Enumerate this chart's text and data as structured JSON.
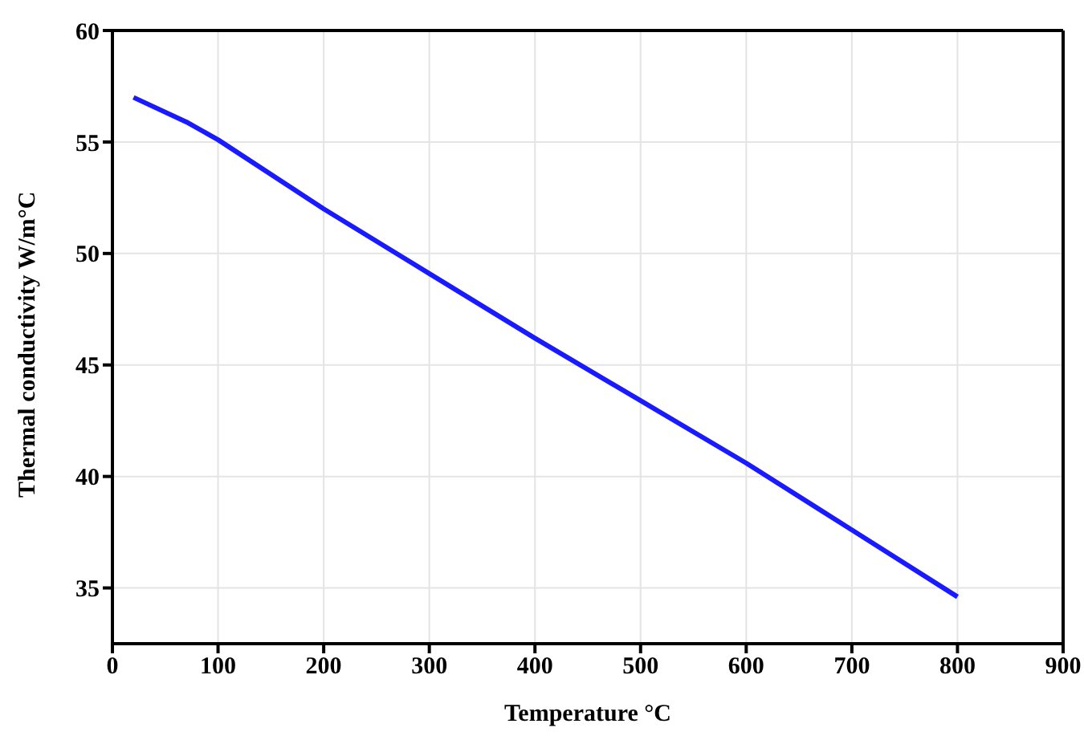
{
  "chart_data": {
    "type": "line",
    "xlabel": "Temperature °C",
    "ylabel": "Thermal conductivity W/m°C",
    "x": [
      20,
      70,
      100,
      200,
      300,
      400,
      500,
      600,
      700,
      800
    ],
    "series": [
      {
        "color": "#1a1aff",
        "values": [
          57,
          55.9,
          55.1,
          52.0,
          49.1,
          46.2,
          43.4,
          40.6,
          37.6,
          34.6
        ]
      }
    ],
    "xlim": [
      0,
      900
    ],
    "xticks": [
      0,
      100,
      200,
      300,
      400,
      500,
      600,
      700,
      800,
      900
    ],
    "ylim": [
      32.5,
      60
    ],
    "yticks": [
      35,
      40,
      45,
      50,
      55,
      60
    ],
    "grid": true,
    "legend": false,
    "marker": "none",
    "line_style": "solid"
  }
}
